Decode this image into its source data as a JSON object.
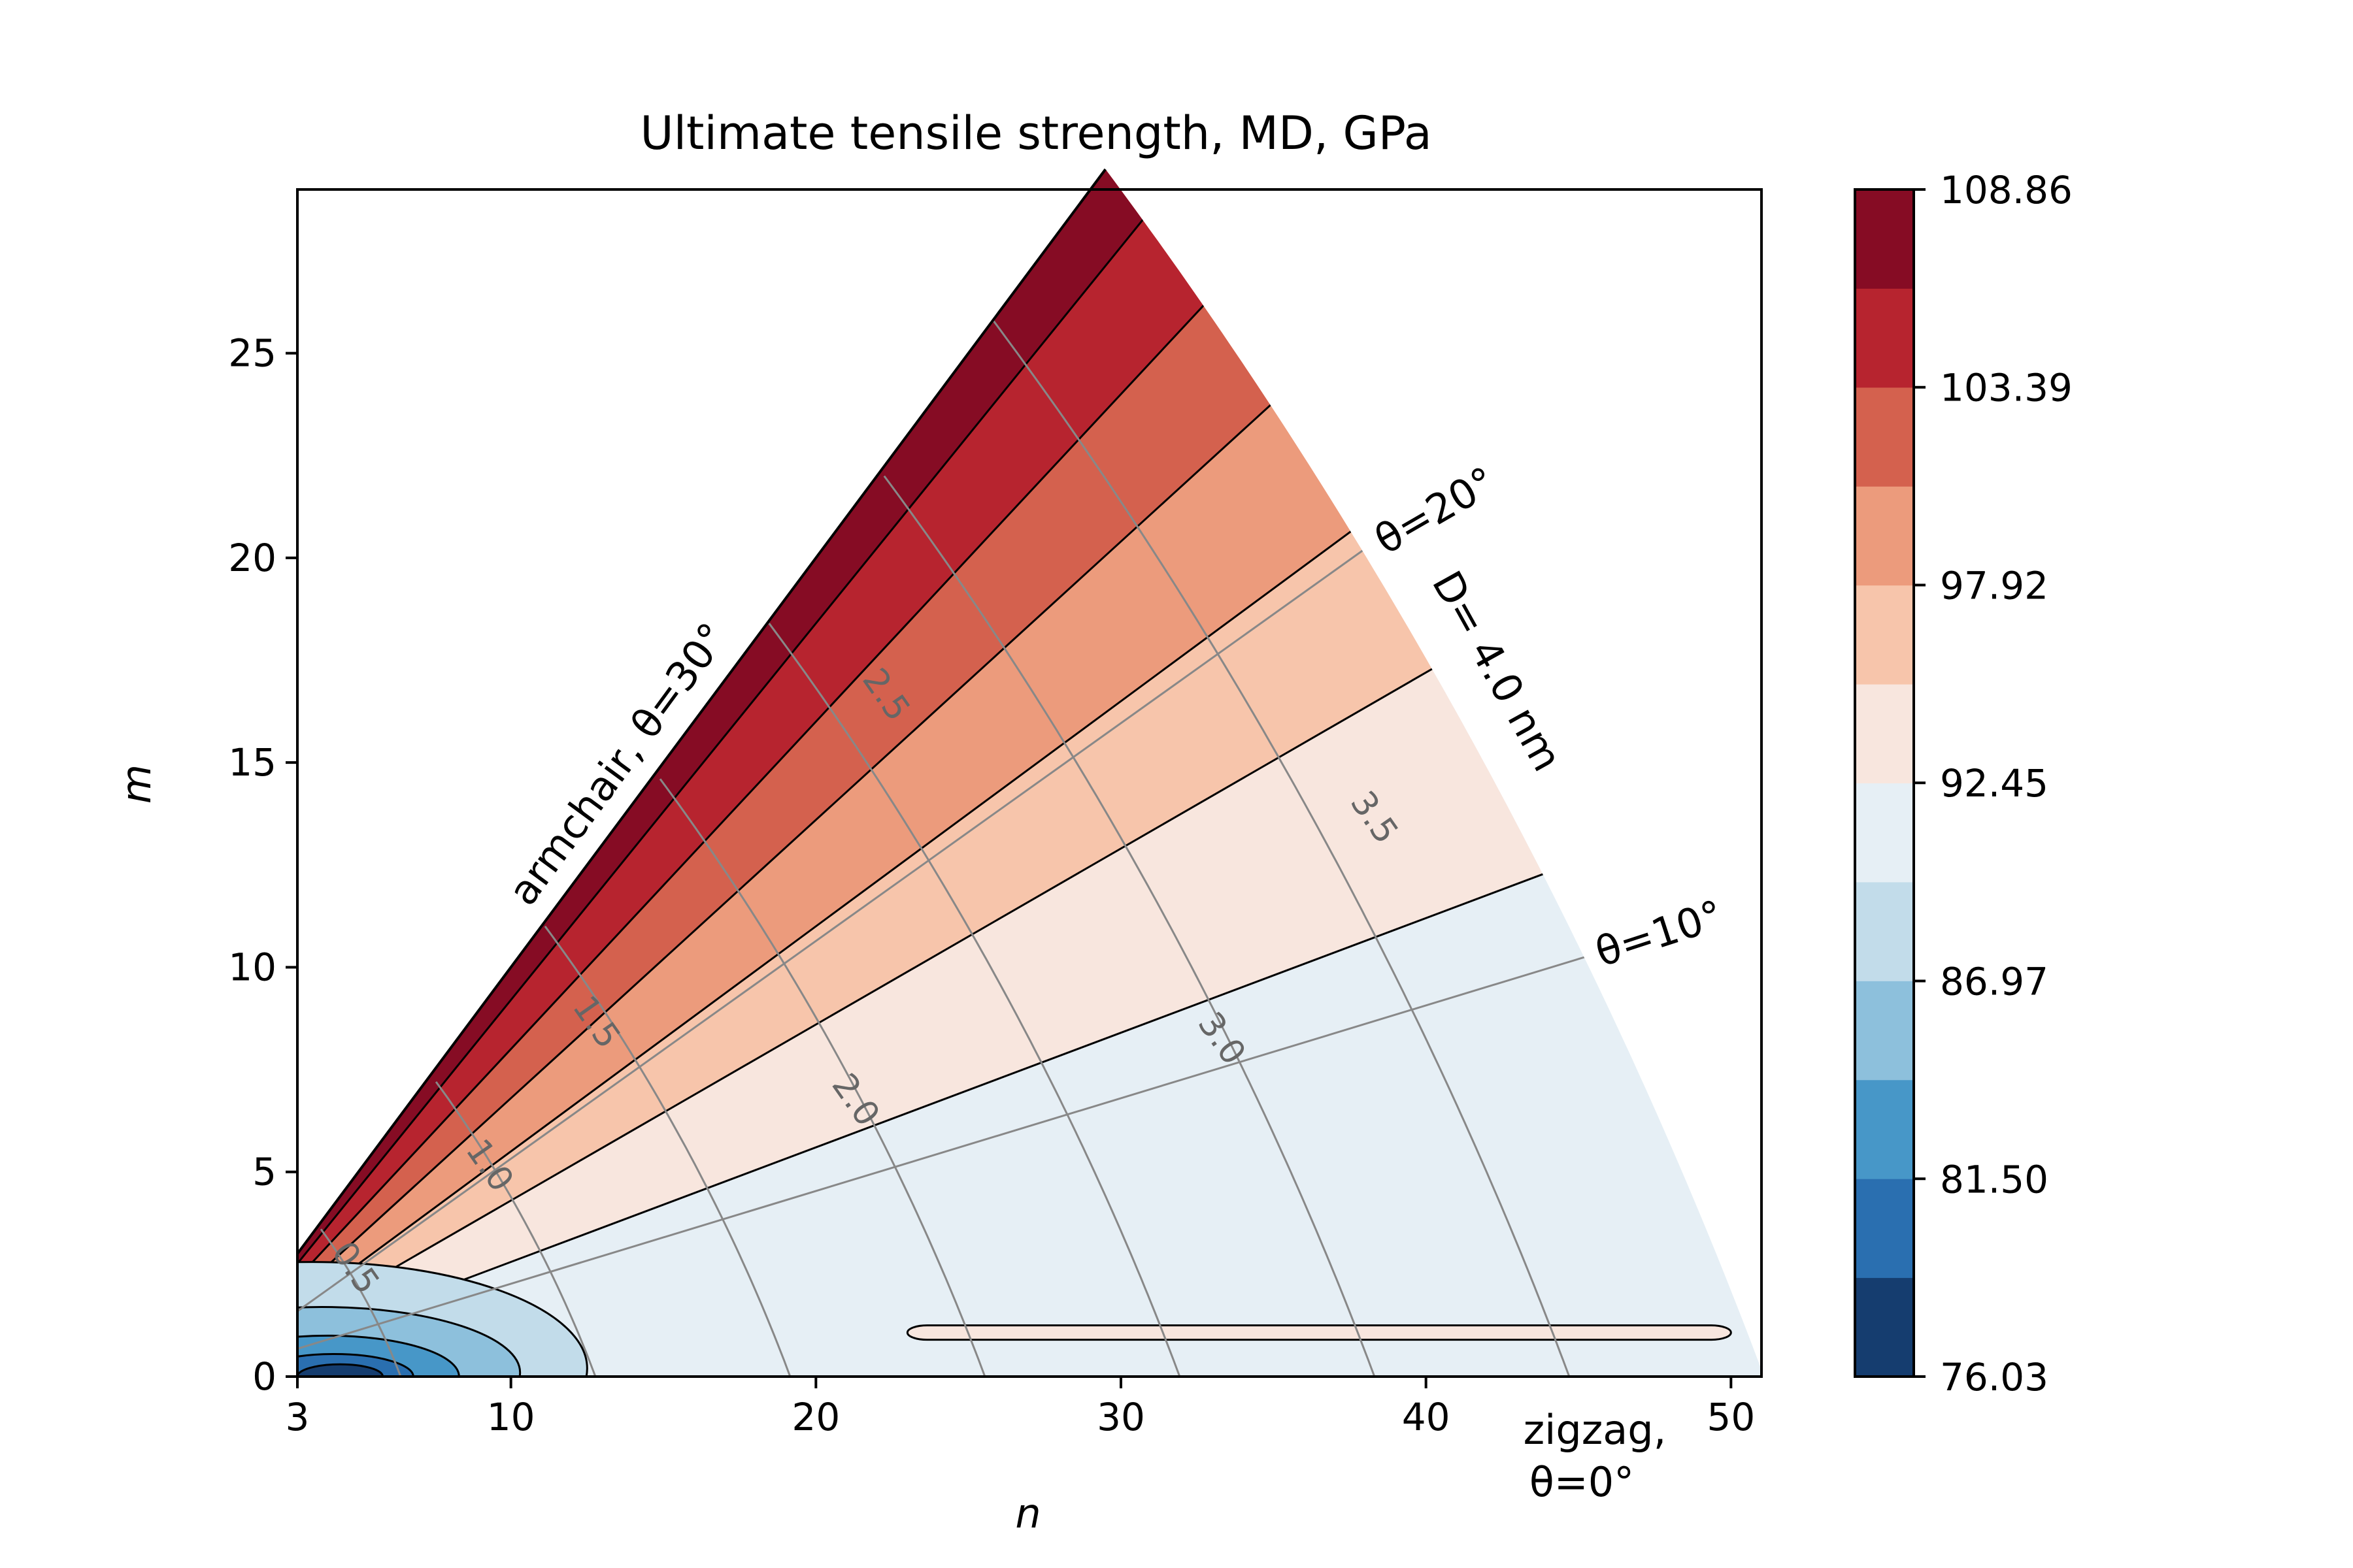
{
  "chart_data": {
    "type": "contour",
    "title": "Ultimate tensile strength, MD, GPa",
    "xlabel": "n",
    "ylabel": "m",
    "xlim": [
      3,
      51
    ],
    "ylim": [
      0,
      29
    ],
    "x_ticks": [
      "3",
      "10",
      "20",
      "30",
      "40",
      "50"
    ],
    "y_ticks": [
      "0",
      "5",
      "10",
      "15",
      "20",
      "25"
    ],
    "colorbar": {
      "ticks": [
        "76.03",
        "81.50",
        "86.97",
        "92.45",
        "97.92",
        "103.39",
        "108.86"
      ],
      "range": [
        76.03,
        108.86
      ],
      "levels": 12,
      "colormap": "RdBu_r",
      "colors": [
        "#153d6f",
        "#2a6fb0",
        "#4797c8",
        "#8dc0dc",
        "#c2dcea",
        "#e6eff5",
        "#f8e6de",
        "#f7c5ab",
        "#ec9b7c",
        "#d4614e",
        "#b7242f",
        "#860c24"
      ]
    },
    "band_colors_by_level_from_low": [
      "#153d6f",
      "#2a6fb0",
      "#4797c8",
      "#8dc0dc",
      "#c2dcea",
      "#e6eff5",
      "#f8e6de",
      "#f7c5ab",
      "#ec9b7c",
      "#d4614e",
      "#b7242f",
      "#860c24"
    ],
    "band_boundaries_m_over_n_approx": {
      "92.45": 0.28,
      "95.18": 0.43,
      "97.92": 0.55,
      "100.65": 0.68,
      "103.39": 0.8,
      "106.12": 0.92
    },
    "diameter_contour_labels": [
      "0.5",
      "1.0",
      "1.5",
      "2.0",
      "2.5",
      "3.0",
      "3.5"
    ],
    "angle_lines": [
      {
        "label": "θ=10°",
        "theta": 10
      },
      {
        "label": "θ=20°",
        "theta": 20
      }
    ],
    "annotations": {
      "armchair": "armchair, θ=30°",
      "zigzag_line1": "zigzag,",
      "zigzag_line2": "θ=0°",
      "diameter_limit": "D= 4.0 nm",
      "theta20": "θ=20°",
      "theta10": "θ=10°"
    }
  }
}
